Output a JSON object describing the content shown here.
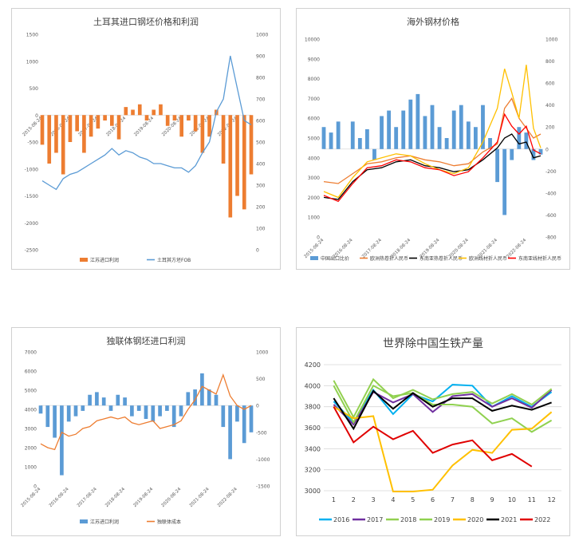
{
  "chart_data": [
    {
      "type": "bar+line",
      "title": "土耳其进口钢坯价格和利润",
      "x_ticks": [
        "2015-08-24",
        "2016-08-24",
        "2017-08-24",
        "2018-08-24",
        "2019-08-24",
        "2020-08-24",
        "2021-08-24",
        "2022-08-24"
      ],
      "left_axis": {
        "ticks": [
          "1500",
          "1000",
          "500",
          "0",
          "-500",
          "-1000",
          "-1500",
          "-2000",
          "-2500"
        ],
        "ylim": [
          -2500,
          1500
        ]
      },
      "right_axis": {
        "ticks": [
          "1000",
          "900",
          "800",
          "700",
          "600",
          "500",
          "400",
          "300",
          "200",
          "100",
          "0"
        ],
        "ylim": [
          0,
          1000
        ]
      },
      "series": [
        {
          "name": "江苏进口利润",
          "kind": "bar",
          "axis": "left",
          "color": "#ED7D31",
          "x": [
            0,
            0.25,
            0.5,
            0.75,
            1,
            1.25,
            1.5,
            1.75,
            2,
            2.25,
            2.5,
            2.75,
            3,
            3.25,
            3.5,
            3.75,
            4,
            4.25,
            4.5,
            4.75,
            5,
            5.25,
            5.5,
            5.75,
            6,
            6.25,
            6.5,
            6.75,
            7,
            7.25,
            7.5
          ],
          "values": [
            -550,
            -900,
            -700,
            -1100,
            -500,
            -300,
            -700,
            -400,
            -250,
            -100,
            -200,
            -450,
            150,
            100,
            200,
            -100,
            100,
            200,
            -200,
            -100,
            -400,
            -100,
            -300,
            -700,
            -400,
            100,
            -900,
            -1900,
            -1500,
            -1750,
            -1100
          ]
        },
        {
          "name": "土耳其方坯FOB",
          "kind": "line",
          "axis": "right",
          "color": "#5B9BD5",
          "x": [
            0,
            0.25,
            0.5,
            0.75,
            1,
            1.25,
            1.5,
            1.75,
            2,
            2.25,
            2.5,
            2.75,
            3,
            3.25,
            3.5,
            3.75,
            4,
            4.25,
            4.5,
            4.75,
            5,
            5.25,
            5.5,
            5.75,
            6,
            6.25,
            6.5,
            6.75,
            7,
            7.25,
            7.5
          ],
          "values": [
            320,
            300,
            280,
            330,
            350,
            360,
            380,
            400,
            420,
            440,
            470,
            440,
            460,
            450,
            430,
            420,
            400,
            400,
            390,
            380,
            380,
            360,
            390,
            450,
            500,
            640,
            700,
            900,
            750,
            600,
            580
          ]
        }
      ]
    },
    {
      "type": "bar+line",
      "title": "海外钢材价格",
      "x_ticks": [
        "2015-08-24",
        "2016-08-24",
        "2017-08-24",
        "2018-08-24",
        "2019-08-24",
        "2020-08-24",
        "2021-08-24",
        "2022-08-24"
      ],
      "left_axis": {
        "ticks": [
          "10000",
          "9000",
          "8000",
          "7000",
          "6000",
          "5000",
          "4000",
          "3000",
          "2000",
          "1000",
          "0"
        ],
        "ylim": [
          0,
          10000
        ]
      },
      "right_axis": {
        "ticks": [
          "1000",
          "800",
          "600",
          "400",
          "200",
          "0",
          "-200",
          "-400",
          "-600",
          "-800"
        ],
        "ylim": [
          -800,
          1000
        ]
      },
      "series": [
        {
          "name": "中国出口比价",
          "kind": "bar",
          "axis": "right",
          "color": "#5B9BD5",
          "x": [
            0,
            0.25,
            0.5,
            0.75,
            1,
            1.25,
            1.5,
            1.75,
            2,
            2.25,
            2.5,
            2.75,
            3,
            3.25,
            3.5,
            3.75,
            4,
            4.25,
            4.5,
            4.75,
            5,
            5.25,
            5.5,
            5.75,
            6,
            6.25,
            6.5,
            6.75,
            7,
            7.25,
            7.5
          ],
          "values": [
            200,
            150,
            250,
            0,
            250,
            100,
            180,
            -100,
            300,
            350,
            200,
            350,
            450,
            500,
            300,
            400,
            200,
            100,
            350,
            400,
            250,
            200,
            400,
            100,
            -300,
            -600,
            -100,
            200,
            150,
            -100,
            -50
          ]
        },
        {
          "name": "欧洲热卷折人民币",
          "kind": "line",
          "axis": "left",
          "color": "#ED7D31",
          "x": [
            0,
            0.5,
            1,
            1.5,
            2,
            2.5,
            3,
            3.5,
            4,
            4.5,
            5,
            5.5,
            6,
            6.25,
            6.5,
            6.75,
            7,
            7.25,
            7.5
          ],
          "values": [
            2800,
            2700,
            3200,
            3700,
            3800,
            4000,
            4100,
            3900,
            3800,
            3600,
            3700,
            4300,
            4700,
            6500,
            7000,
            6000,
            5500,
            5000,
            5200
          ]
        },
        {
          "name": "东南亚热卷折人民币",
          "kind": "line",
          "axis": "left",
          "color": "#000000",
          "x": [
            0,
            0.5,
            1,
            1.5,
            2,
            2.5,
            3,
            3.5,
            4,
            4.5,
            5,
            5.5,
            6,
            6.25,
            6.5,
            6.75,
            7,
            7.25,
            7.5
          ],
          "values": [
            2000,
            1900,
            2800,
            3400,
            3500,
            3800,
            3900,
            3600,
            3500,
            3300,
            3400,
            3900,
            4500,
            5000,
            5200,
            4700,
            4800,
            4000,
            4100
          ]
        },
        {
          "name": "欧洲线材折人民币",
          "kind": "line",
          "axis": "left",
          "color": "#FFC000",
          "x": [
            0,
            0.5,
            1,
            1.5,
            2,
            2.5,
            3,
            3.5,
            4,
            4.5,
            5,
            5.5,
            6,
            6.25,
            6.5,
            6.75,
            7,
            7.25,
            7.5
          ],
          "values": [
            2300,
            2000,
            3000,
            3800,
            4000,
            4200,
            4100,
            3700,
            3400,
            3200,
            3500,
            4800,
            6500,
            8500,
            7300,
            6000,
            8700,
            5500,
            4500
          ]
        },
        {
          "name": "东南亚线材折人民币",
          "kind": "line",
          "axis": "left",
          "color": "#FF0000",
          "x": [
            0,
            0.5,
            1,
            1.5,
            2,
            2.5,
            3,
            3.5,
            4,
            4.5,
            5,
            5.5,
            6,
            6.25,
            6.5,
            6.75,
            7,
            7.25,
            7.5
          ],
          "values": [
            2100,
            1800,
            2700,
            3500,
            3600,
            3900,
            3800,
            3500,
            3400,
            3100,
            3300,
            4000,
            4800,
            6200,
            5600,
            5200,
            5600,
            4400,
            4200
          ]
        }
      ]
    },
    {
      "type": "bar+line",
      "title": "独联体钢坯进口利润",
      "x_ticks": [
        "2015-08-24",
        "2016-08-24",
        "2017-08-24",
        "2018-08-24",
        "2019-08-24",
        "2020-08-24",
        "2021-08-24",
        "2022-08-24"
      ],
      "left_axis": {
        "ticks": [
          "7000",
          "6000",
          "5000",
          "4000",
          "3000",
          "2000",
          "1000",
          "0"
        ],
        "ylim": [
          0,
          7000
        ]
      },
      "right_axis": {
        "ticks": [
          "1000",
          "500",
          "0",
          "-500",
          "-1000",
          "-1500"
        ],
        "ylim": [
          -1500,
          1000
        ]
      },
      "series": [
        {
          "name": "江苏进口利润",
          "kind": "bar",
          "axis": "right",
          "color": "#5B9BD5",
          "x": [
            0,
            0.25,
            0.5,
            0.75,
            1,
            1.25,
            1.5,
            1.75,
            2,
            2.25,
            2.5,
            2.75,
            3,
            3.25,
            3.5,
            3.75,
            4,
            4.25,
            4.5,
            4.75,
            5,
            5.25,
            5.5,
            5.75,
            6,
            6.25,
            6.5,
            6.75,
            7,
            7.25,
            7.5
          ],
          "values": [
            -150,
            -400,
            -600,
            -1300,
            -300,
            -200,
            -100,
            200,
            250,
            150,
            -100,
            200,
            150,
            -200,
            -100,
            -250,
            -300,
            -200,
            -100,
            -400,
            -200,
            250,
            300,
            600,
            300,
            200,
            -400,
            -1000,
            -300,
            -700,
            -500
          ]
        },
        {
          "name": "独联体成本",
          "kind": "line",
          "axis": "left",
          "color": "#ED7D31",
          "x": [
            0,
            0.25,
            0.5,
            0.75,
            1,
            1.25,
            1.5,
            1.75,
            2,
            2.25,
            2.5,
            2.75,
            3,
            3.25,
            3.5,
            3.75,
            4,
            4.25,
            4.5,
            4.75,
            5,
            5.25,
            5.5,
            5.75,
            6,
            6.25,
            6.5,
            6.75,
            7,
            7.25,
            7.5
          ],
          "values": [
            2200,
            2000,
            1900,
            2800,
            2600,
            2700,
            3000,
            3100,
            3400,
            3500,
            3600,
            3500,
            3600,
            3300,
            3200,
            3300,
            3400,
            3000,
            3100,
            3200,
            3400,
            4000,
            4500,
            5200,
            5000,
            4800,
            5800,
            4700,
            4200,
            4000,
            4200
          ]
        }
      ]
    },
    {
      "type": "line",
      "title": "世界除中国生铁产量",
      "categories": [
        "1",
        "2",
        "3",
        "4",
        "5",
        "6",
        "7",
        "8",
        "9",
        "10",
        "11",
        "12"
      ],
      "y_ticks": [
        "4200",
        "4000",
        "3800",
        "3600",
        "3400",
        "3200",
        "3000"
      ],
      "ylim": [
        3000,
        4200
      ],
      "legend_position": "bottom",
      "series": [
        {
          "name": "2016",
          "color": "#00B0F0",
          "values": [
            3850,
            3650,
            3960,
            3730,
            3920,
            3850,
            4010,
            4000,
            3800,
            3900,
            3800,
            3940
          ]
        },
        {
          "name": "2017",
          "color": "#7030A0",
          "values": [
            3820,
            3630,
            3940,
            3840,
            3920,
            3750,
            3900,
            3920,
            3800,
            3880,
            3790,
            3960
          ]
        },
        {
          "name": "2018",
          "color": "#92D050",
          "values": [
            4050,
            3700,
            4060,
            3880,
            3960,
            3870,
            3920,
            3940,
            3830,
            3920,
            3820,
            3970
          ]
        },
        {
          "name": "2019",
          "color": "#8FD14F",
          "values": [
            4000,
            3650,
            4000,
            3900,
            3930,
            3820,
            3820,
            3800,
            3640,
            3690,
            3560,
            3670
          ]
        },
        {
          "name": "2020",
          "color": "#FFC000",
          "values": [
            3800,
            3690,
            3710,
            2980,
            2970,
            3010,
            3240,
            3390,
            3360,
            3580,
            3590,
            3750
          ]
        },
        {
          "name": "2021",
          "color": "#000000",
          "values": [
            3880,
            3590,
            3950,
            3780,
            3930,
            3800,
            3880,
            3880,
            3760,
            3810,
            3770,
            3840
          ]
        },
        {
          "name": "2022",
          "color": "#E00000",
          "values": [
            3800,
            3460,
            3610,
            3490,
            3570,
            3360,
            3440,
            3480,
            3290,
            3350,
            3230,
            null
          ]
        }
      ]
    }
  ]
}
